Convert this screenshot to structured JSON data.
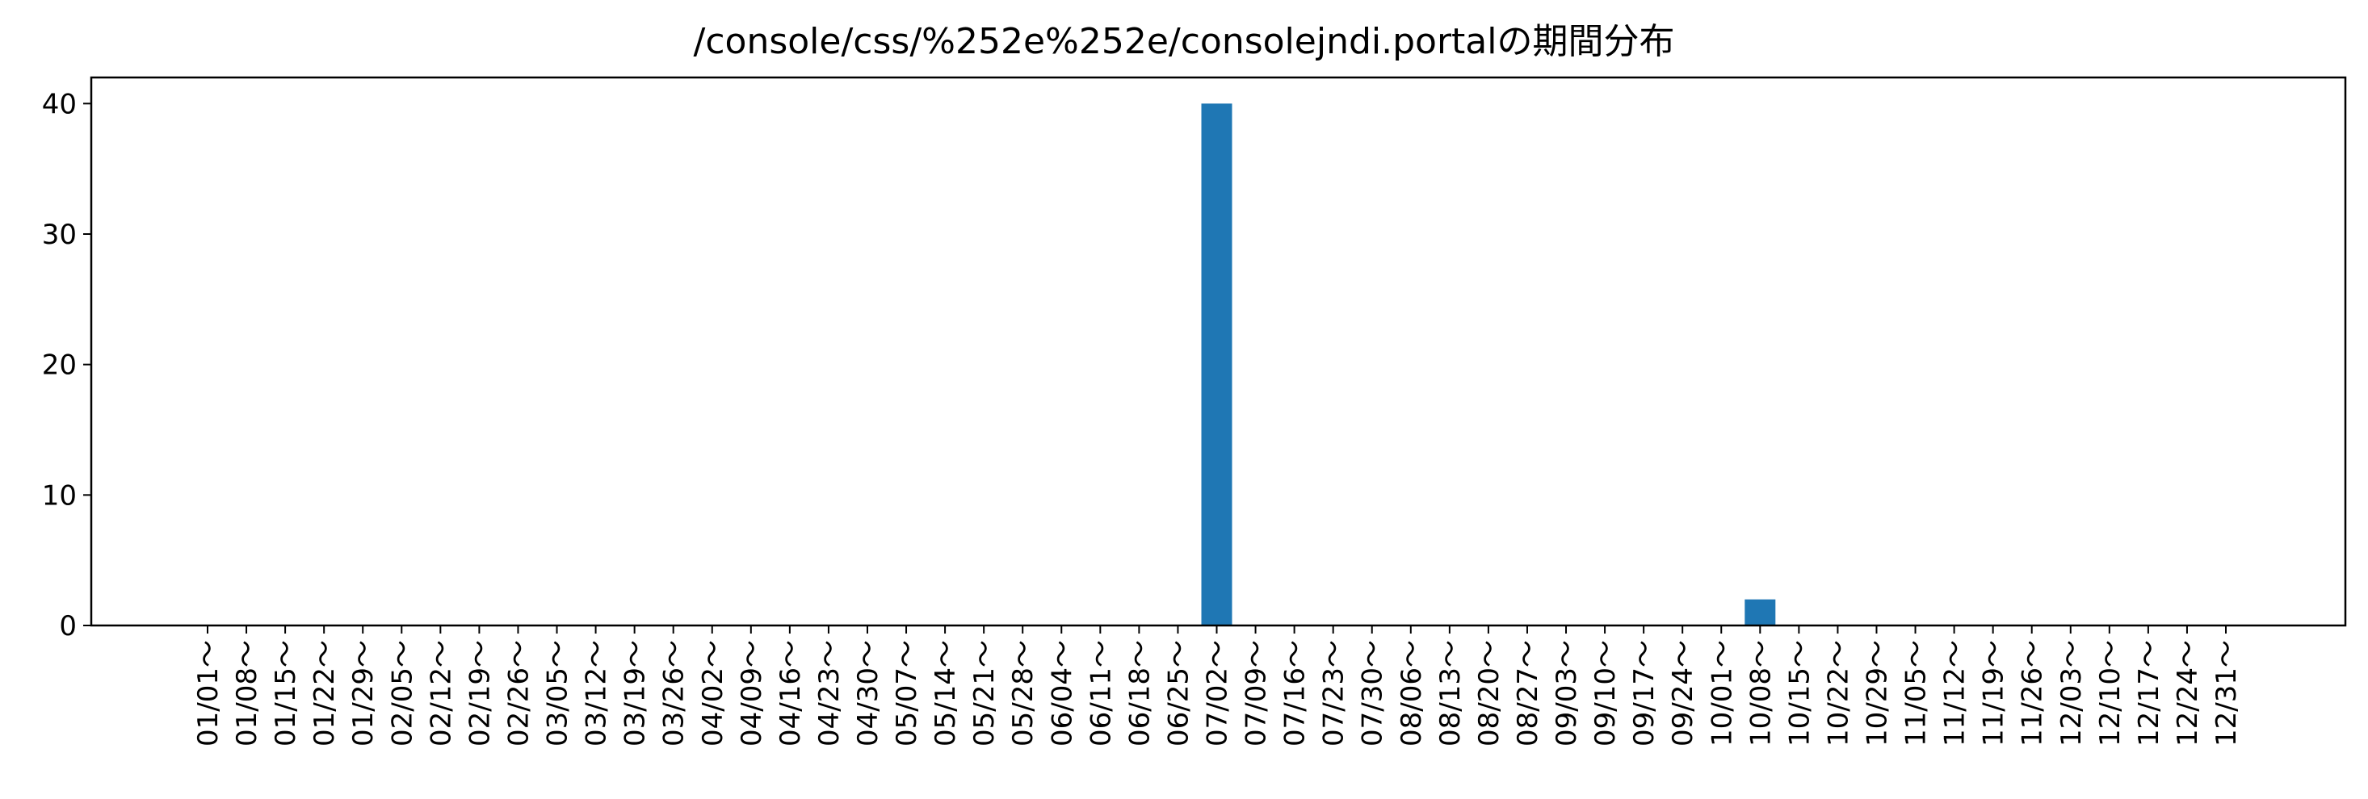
{
  "chart_data": {
    "type": "bar",
    "title": "/console/css/%252e%252e/consolejndi.portalの期間分布",
    "xlabel": "",
    "ylabel": "",
    "ylim": [
      0,
      42
    ],
    "yticks": [
      "0",
      "10",
      "20",
      "30",
      "40"
    ],
    "grid": false,
    "bar_color": "#1f77b4",
    "categories": [
      "01/01～",
      "01/08～",
      "01/15～",
      "01/22～",
      "01/29～",
      "02/05～",
      "02/12～",
      "02/19～",
      "02/26～",
      "03/05～",
      "03/12～",
      "03/19～",
      "03/26～",
      "04/02～",
      "04/09～",
      "04/16～",
      "04/23～",
      "04/30～",
      "05/07～",
      "05/14～",
      "05/21～",
      "05/28～",
      "06/04～",
      "06/11～",
      "06/18～",
      "06/25～",
      "07/02～",
      "07/09～",
      "07/16～",
      "07/23～",
      "07/30～",
      "08/06～",
      "08/13～",
      "08/20～",
      "08/27～",
      "09/03～",
      "09/10～",
      "09/17～",
      "09/24～",
      "10/01～",
      "10/08～",
      "10/15～",
      "10/22～",
      "10/29～",
      "11/05～",
      "11/12～",
      "11/19～",
      "11/26～",
      "12/03～",
      "12/10～",
      "12/17～",
      "12/24～",
      "12/31～"
    ],
    "values": [
      0,
      0,
      0,
      0,
      0,
      0,
      0,
      0,
      0,
      0,
      0,
      0,
      0,
      0,
      0,
      0,
      0,
      0,
      0,
      0,
      0,
      0,
      0,
      0,
      0,
      0,
      40,
      0,
      0,
      0,
      0,
      0,
      0,
      0,
      0,
      0,
      0,
      0,
      0,
      0,
      2,
      0,
      0,
      0,
      0,
      0,
      0,
      0,
      0,
      0,
      0,
      0,
      0
    ]
  }
}
